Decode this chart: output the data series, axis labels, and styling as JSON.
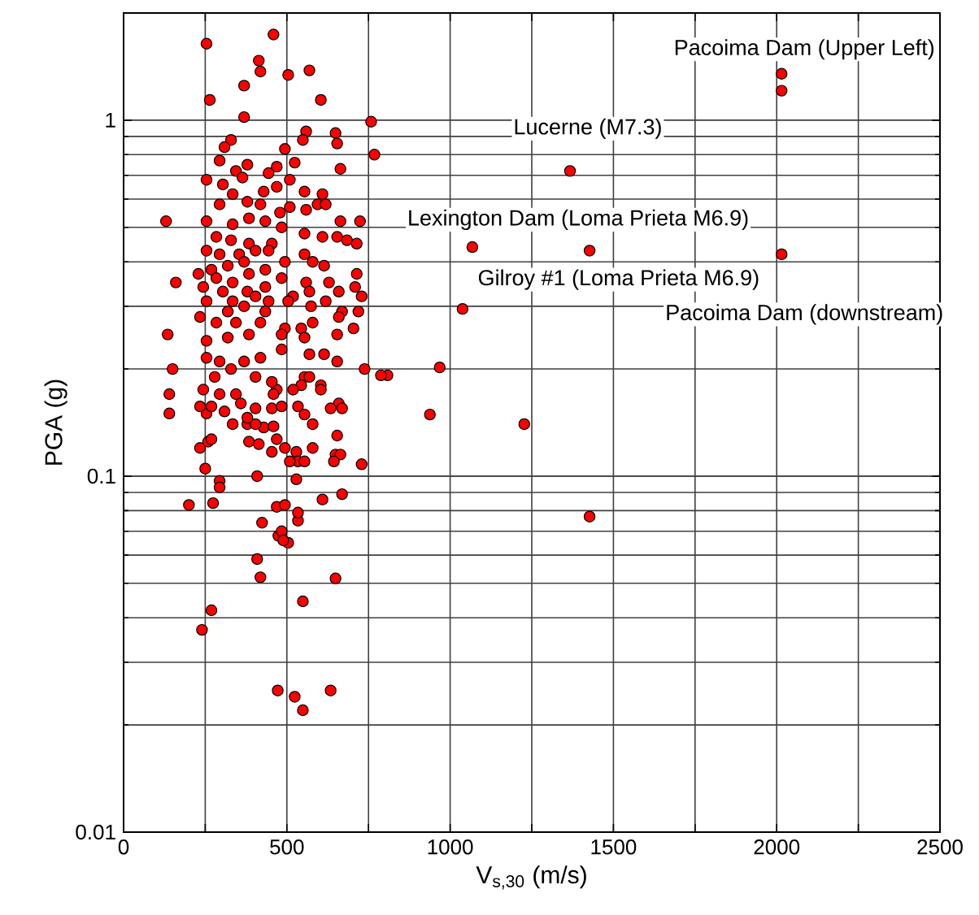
{
  "chart_data": {
    "type": "scatter",
    "xlabel": "V$_{s,30}$ (m/s)",
    "ylabel": "PGA (g)",
    "log": "y",
    "grid": true,
    "marker": "circle",
    "xlim": [
      0,
      2500
    ],
    "ylim": [
      0.01,
      2
    ],
    "xticks": [
      0,
      {
        "value": 250,
        "label": null
      },
      500,
      {
        "value": 750,
        "label": null
      },
      1000,
      {
        "value": 1250,
        "label": null
      },
      1500,
      {
        "value": 1750,
        "label": null
      },
      2000,
      {
        "value": 2250,
        "label": null
      },
      2500
    ],
    "yticks": [
      0.01,
      0.1,
      1
    ],
    "annotations": [
      {
        "text": "Pacoima Dam (Upper Left)",
        "x": 2015,
        "y": 1.35
      },
      {
        "text": "Lucerne (M7.3)",
        "x": 1367,
        "y": 0.72
      },
      {
        "text": "Lexington Dam (Loma Prieta M6.9)",
        "x": 1427,
        "y": 0.43
      },
      {
        "text": "Gilroy #1 (Loma Prieta M6.9)",
        "x": 1038,
        "y": 0.295
      },
      {
        "text": "Pacoima Dam (downstream)",
        "x": 2015,
        "y": 0.42
      }
    ],
    "series": [
      {
        "color": "#ff0000",
        "x": [
          2015,
          2015,
          2015,
          1367,
          1427,
          1068,
          1038,
          1227,
          938,
          968,
          808,
          788,
          738,
          1427,
          472,
          524,
          549,
          634,
          240,
          269,
          549,
          649,
          419,
          409,
          504,
          474,
          484,
          489,
          424,
          534,
          534,
          609,
          669,
          469,
          494,
          274,
          294,
          294,
          409,
          529,
          250,
          729,
          200,
          459,
          254,
          414,
          419,
          504,
          569,
          369,
          264,
          604,
          369,
          758,
          768,
          559,
          649,
          654,
          549,
          494,
          329,
          309,
          664,
          524,
          469,
          379,
          294,
          344,
          364,
          444,
          509,
          254,
          304,
          429,
          469,
          554,
          609,
          594,
          334,
          379,
          294,
          419,
          479,
          509,
          559,
          619,
          664,
          724,
          254,
          334,
          384,
          434,
          484,
          554,
          609,
          654,
          684,
          714,
          284,
          329,
          384,
          454,
          254,
          294,
          354,
          404,
          444,
          554,
          494,
          369,
          319,
          269,
          579,
          614,
          714,
          434,
          384,
          229,
          284,
          334,
          559,
          629,
          709,
          729,
          484,
          244,
          304,
          379,
          434,
          519,
          569,
          659,
          619,
          254,
          334,
          404,
          444,
          504,
          574,
          669,
          719,
          319,
          369,
          434,
          544,
          579,
          659,
          704,
          234,
          284,
          344,
          419,
          494,
          654,
          614,
          569,
          554,
          569,
          604,
          604,
          659,
          669,
          634,
          654,
          649,
          664,
          644,
          579,
          529,
          534,
          509,
          554,
          454,
          494,
          469,
          384,
          414,
          429,
          459,
          234,
          259,
          269,
          379,
          404,
          334,
          379,
          454,
          484,
          404,
          359,
          309,
          254,
          269,
          234,
          534,
          554,
          579,
          544,
          519,
          469,
          459,
          344,
          294,
          244,
          279,
          404,
          454,
          329,
          369,
          254,
          294,
          419,
          484,
          254,
          319,
          384,
          484,
          554,
          654,
          140,
          135,
          130,
          150,
          160,
          140
        ],
        "values": [
          1.35,
          1.21,
          0.42,
          0.72,
          0.43,
          0.44,
          0.295,
          0.14,
          0.149,
          0.202,
          0.192,
          0.192,
          0.2,
          0.077,
          0.025,
          0.024,
          0.022,
          0.025,
          0.037,
          0.042,
          0.0445,
          0.0516,
          0.052,
          0.0585,
          0.065,
          0.068,
          0.07,
          0.066,
          0.074,
          0.075,
          0.079,
          0.086,
          0.089,
          0.082,
          0.083,
          0.084,
          0.097,
          0.093,
          0.1,
          0.098,
          0.105,
          0.108,
          0.083,
          1.74,
          1.64,
          1.47,
          1.37,
          1.34,
          1.38,
          1.25,
          1.14,
          1.14,
          1.02,
          0.99,
          0.8,
          0.93,
          0.92,
          0.86,
          0.88,
          0.83,
          0.88,
          0.84,
          0.73,
          0.76,
          0.74,
          0.75,
          0.77,
          0.72,
          0.69,
          0.71,
          0.68,
          0.68,
          0.66,
          0.63,
          0.65,
          0.63,
          0.62,
          0.58,
          0.62,
          0.59,
          0.58,
          0.58,
          0.55,
          0.57,
          0.56,
          0.58,
          0.52,
          0.52,
          0.52,
          0.51,
          0.53,
          0.52,
          0.5,
          0.48,
          0.47,
          0.47,
          0.46,
          0.45,
          0.47,
          0.46,
          0.45,
          0.45,
          0.43,
          0.42,
          0.42,
          0.43,
          0.43,
          0.42,
          0.4,
          0.4,
          0.39,
          0.38,
          0.4,
          0.39,
          0.37,
          0.38,
          0.37,
          0.37,
          0.36,
          0.35,
          0.35,
          0.35,
          0.34,
          0.32,
          0.36,
          0.34,
          0.33,
          0.33,
          0.34,
          0.32,
          0.33,
          0.33,
          0.31,
          0.31,
          0.31,
          0.32,
          0.31,
          0.31,
          0.3,
          0.29,
          0.29,
          0.29,
          0.3,
          0.29,
          0.26,
          0.27,
          0.28,
          0.26,
          0.28,
          0.27,
          0.27,
          0.27,
          0.26,
          0.21,
          0.22,
          0.22,
          0.19,
          0.19,
          0.18,
          0.175,
          0.16,
          0.155,
          0.155,
          0.13,
          0.115,
          0.115,
          0.11,
          0.12,
          0.117,
          0.11,
          0.11,
          0.11,
          0.117,
          0.12,
          0.127,
          0.125,
          0.123,
          0.137,
          0.138,
          0.12,
          0.125,
          0.127,
          0.14,
          0.14,
          0.14,
          0.146,
          0.155,
          0.157,
          0.155,
          0.16,
          0.152,
          0.15,
          0.157,
          0.157,
          0.157,
          0.149,
          0.14,
          0.18,
          0.175,
          0.175,
          0.17,
          0.17,
          0.17,
          0.175,
          0.19,
          0.19,
          0.184,
          0.2,
          0.21,
          0.215,
          0.21,
          0.215,
          0.227,
          0.24,
          0.245,
          0.25,
          0.25,
          0.245,
          0.25,
          0.15,
          0.25,
          0.52,
          0.2,
          0.35,
          0.17
        ]
      }
    ]
  }
}
